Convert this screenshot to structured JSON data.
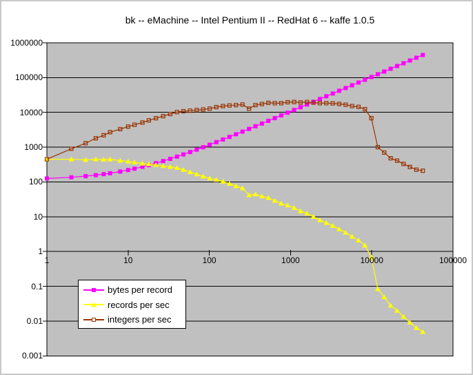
{
  "title": "bk -- eMachine -- Intel Pentium II -- RedHat 6 -- kaffe 1.0.5",
  "colors": {
    "plot_background": "#C0C0C0",
    "gridline": "#000000",
    "axis_text": "#000000",
    "bytes_series": "#FF00FF",
    "records_series": "#FFFF00",
    "integers_series": "#993300"
  },
  "axes": {
    "x": {
      "scale": "log",
      "min": 1,
      "max": 100000,
      "tick_labels": [
        "1",
        "10",
        "100",
        "1000",
        "10000",
        "100000"
      ]
    },
    "y": {
      "scale": "log",
      "min": 0.001,
      "max": 1000000,
      "tick_labels": [
        "1000000",
        "100000",
        "10000",
        "1000",
        "100",
        "10",
        "1",
        "0.1",
        "0.01",
        "0.001"
      ]
    }
  },
  "legend": {
    "items": [
      {
        "label": "bytes per record",
        "color": "#FF00FF",
        "marker": "square-filled"
      },
      {
        "label": "records per sec",
        "color": "#FFFF00",
        "marker": "triangle-filled"
      },
      {
        "label": "integers per sec",
        "color": "#993300",
        "marker": "square-open"
      }
    ]
  },
  "chart_data": {
    "type": "line",
    "title": "bk -- eMachine -- Intel Pentium II -- RedHat 6 -- kaffe 1.0.5",
    "x_scale": "log",
    "y_scale": "log",
    "xlim": [
      1,
      100000
    ],
    "ylim": [
      0.001,
      1000000
    ],
    "grid": "horizontal-decades",
    "legend_position": "inside-bottom-left",
    "x": [
      1,
      2,
      3,
      4,
      5,
      6,
      8,
      10,
      12,
      15,
      18,
      22,
      27,
      33,
      40,
      48,
      58,
      70,
      84,
      101,
      122,
      147,
      177,
      213,
      256,
      308,
      370,
      444,
      533,
      640,
      768,
      922,
      1107,
      1329,
      1595,
      1914,
      2297,
      2757,
      3309,
      3971,
      4766,
      5720,
      6864,
      8237,
      9885,
      11862,
      14235,
      17082,
      20499,
      24599,
      29519,
      35423,
      42508
    ],
    "series": [
      {
        "name": "bytes per record",
        "color": "#FF00FF",
        "marker": "square-filled",
        "values": [
          126,
          136,
          147,
          157,
          168,
          178,
          199,
          220,
          241,
          273,
          304,
          346,
          399,
          462,
          535,
          619,
          724,
          850,
          997,
          1176,
          1396,
          1659,
          1974,
          2352,
          2803,
          3349,
          4000,
          4777,
          5712,
          6835,
          8179,
          9796,
          11739,
          14070,
          16863,
          20212,
          24234,
          29064,
          34860,
          41811,
          50158,
          60175,
          72187,
          86604,
          103908,
          124666,
          149583,
          179476,
          215355,
          258405,
          310065,
          372057,
          446449
        ]
      },
      {
        "name": "records per sec",
        "color": "#FFFF00",
        "marker": "triangle-filled",
        "values": [
          450,
          450,
          433,
          450,
          440,
          450,
          412,
          390,
          367,
          340,
          328,
          309,
          289,
          273,
          255,
          225,
          193,
          167,
          144,
          127,
          116,
          103,
          89,
          76,
          66,
          42,
          44,
          39,
          35,
          29,
          24,
          21.3,
          18,
          14.5,
          12.5,
          10,
          8,
          6.7,
          5.5,
          4.4,
          3.5,
          2.7,
          2.1,
          1.5,
          0.69,
          0.084,
          0.049,
          0.028,
          0.02,
          0.0134,
          0.0091,
          0.0064,
          0.0049
        ]
      },
      {
        "name": "integers per sec",
        "color": "#993300",
        "marker": "square-open",
        "values": [
          450,
          900,
          1300,
          1800,
          2200,
          2700,
          3300,
          3900,
          4400,
          5100,
          5900,
          6800,
          7800,
          9000,
          10200,
          10800,
          11200,
          11700,
          12100,
          12800,
          14200,
          15200,
          15800,
          16200,
          16800,
          12800,
          16200,
          17400,
          18800,
          18400,
          18400,
          19600,
          19900,
          19300,
          19900,
          19100,
          18400,
          18400,
          18200,
          17500,
          16600,
          15200,
          14400,
          12400,
          6800,
          1000,
          700,
          480,
          410,
          330,
          270,
          225,
          210
        ]
      }
    ]
  }
}
